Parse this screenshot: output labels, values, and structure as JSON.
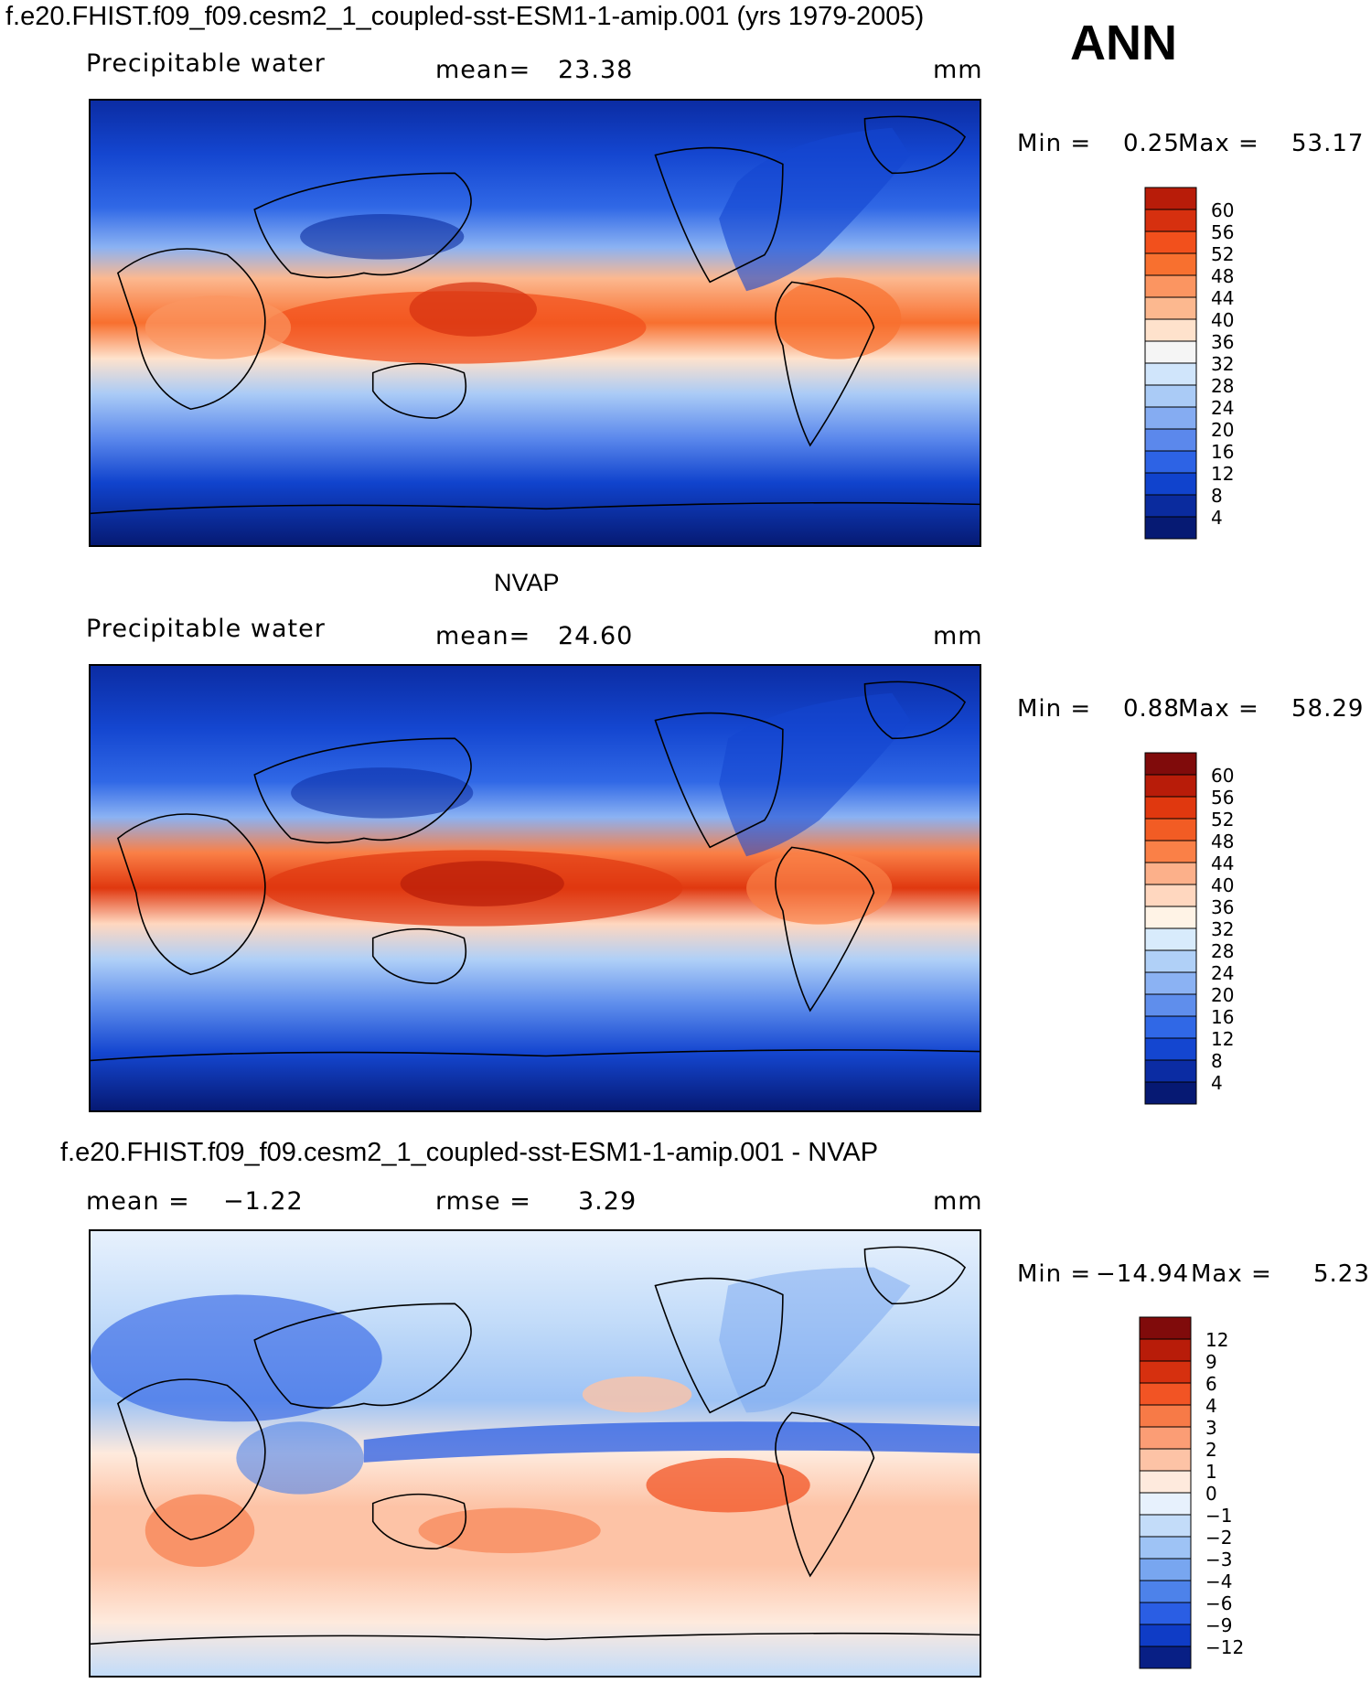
{
  "header": {
    "title": "f.e20.FHIST.f09_f09.cesm2_1_coupled-sst-ESM1-1-amip.001 (yrs 1979-2005)",
    "season": "ANN"
  },
  "chart_data": [
    {
      "type": "heatmap",
      "title": "",
      "variable": "Precipitable  water",
      "mean_label": "mean=",
      "mean": "23.38",
      "units": "mm",
      "min_label": "Min  =",
      "min": "0.25",
      "max_label": "Max  =",
      "max": "53.17",
      "colorbar_levels": [
        "60",
        "56",
        "52",
        "48",
        "44",
        "40",
        "36",
        "32",
        "28",
        "24",
        "20",
        "16",
        "12",
        "8",
        "4"
      ],
      "colorbar_colors": [
        "#b81c09",
        "#d6300f",
        "#f2501c",
        "#f8702f",
        "#fb9561",
        "#fcb88f",
        "#fee2cc",
        "#f5f5f5",
        "#d0e5fb",
        "#aacbf6",
        "#85acf2",
        "#5b88ec",
        "#2d63e5",
        "#1043cd",
        "#0a2b9e",
        "#061a73"
      ],
      "scale": "discrete contour levels"
    },
    {
      "type": "heatmap",
      "title": "NVAP",
      "variable": "Precipitable  water",
      "mean_label": "mean=",
      "mean": "24.60",
      "units": "mm",
      "min_label": "Min  =",
      "min": "0.88",
      "max_label": "Max  =",
      "max": "58.29",
      "colorbar_levels": [
        "60",
        "56",
        "52",
        "48",
        "44",
        "40",
        "36",
        "32",
        "28",
        "24",
        "20",
        "16",
        "12",
        "8",
        "4"
      ],
      "colorbar_colors": [
        "#800b0b",
        "#b81c09",
        "#e0380f",
        "#f25c24",
        "#fa8047",
        "#fcb08a",
        "#ffd7bf",
        "#fff3e6",
        "#d8ebfc",
        "#b0d0f7",
        "#8bb2f3",
        "#5f8eec",
        "#3068e6",
        "#1446d0",
        "#0b2ca3",
        "#061973"
      ],
      "scale": "discrete contour levels"
    },
    {
      "type": "heatmap",
      "title": "f.e20.FHIST.f09_f09.cesm2_1_coupled-sst-ESM1-1-amip.001 - NVAP",
      "mean_label": "mean  =",
      "mean": "−1.22",
      "rmse_label": "rmse  =",
      "rmse": "3.29",
      "units": "mm",
      "min_label": "Min  =",
      "min": "−14.94",
      "max_label": "Max  =",
      "max": "5.23",
      "colorbar_levels": [
        "12",
        "9",
        "6",
        "4",
        "3",
        "2",
        "1",
        "0",
        "−1",
        "−2",
        "−3",
        "−4",
        "−6",
        "−9",
        "−12"
      ],
      "colorbar_colors": [
        "#800b0b",
        "#b81c09",
        "#d6300f",
        "#f25424",
        "#f77a47",
        "#fb9d75",
        "#fdc3a6",
        "#feeadd",
        "#e7f1fd",
        "#c3dcf9",
        "#9ec3f5",
        "#78a6f0",
        "#4d82ea",
        "#2a5ee4",
        "#0f3cc6",
        "#081f85"
      ],
      "scale": "discrete contour levels"
    }
  ]
}
